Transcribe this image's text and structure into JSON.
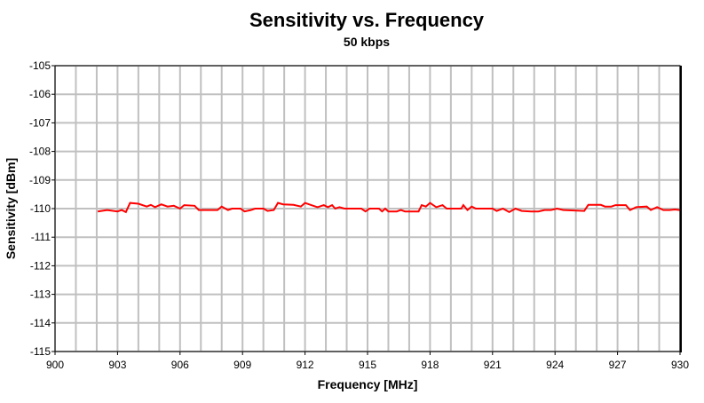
{
  "chart_data": {
    "type": "line",
    "title": "Sensitivity vs. Frequency",
    "subtitle": "50 kbps",
    "xlabel": "Frequency [MHz]",
    "ylabel": "Sensitivity [dBm]",
    "xlim": [
      900,
      930
    ],
    "ylim": [
      -115,
      -105
    ],
    "xticks": [
      900,
      903,
      906,
      909,
      912,
      915,
      918,
      921,
      924,
      927,
      930
    ],
    "yticks": [
      -105,
      -106,
      -107,
      -108,
      -109,
      -110,
      -111,
      -112,
      -113,
      -114,
      -115
    ],
    "grid": true,
    "colors": {
      "series": "#ff0000",
      "grid": "#c0c0c0"
    },
    "series": [
      {
        "x": [
          902.05,
          902.5,
          903.0,
          903.2,
          903.4,
          903.6,
          904.0,
          904.4,
          904.6,
          904.8,
          905.1,
          905.4,
          905.7,
          906.0,
          906.2,
          906.7,
          906.9,
          907.8,
          908.0,
          908.3,
          908.5,
          908.9,
          909.1,
          909.4,
          909.6,
          910.0,
          910.2,
          910.5,
          910.7,
          910.95,
          911.45,
          911.8,
          912.0,
          912.3,
          912.6,
          912.9,
          913.1,
          913.3,
          913.45,
          913.65,
          913.9,
          914.7,
          914.9,
          915.1,
          915.55,
          915.7,
          915.85,
          916.0,
          916.4,
          916.6,
          916.8,
          917.45,
          917.6,
          917.8,
          918.0,
          918.3,
          918.6,
          918.8,
          919.5,
          919.6,
          919.8,
          920.0,
          920.2,
          921.0,
          921.2,
          921.5,
          921.8,
          922.1,
          922.4,
          922.85,
          923.2,
          923.5,
          923.8,
          924.1,
          924.4,
          925.4,
          925.6,
          926.2,
          926.4,
          926.7,
          926.9,
          927.4,
          927.6,
          927.9,
          928.4,
          928.6,
          928.9,
          929.2,
          929.5,
          929.75,
          930.0
        ],
        "y": [
          -110.1,
          -110.05,
          -110.1,
          -110.05,
          -110.12,
          -109.8,
          -109.83,
          -109.93,
          -109.87,
          -109.95,
          -109.85,
          -109.93,
          -109.9,
          -110.0,
          -109.88,
          -109.9,
          -110.05,
          -110.05,
          -109.93,
          -110.05,
          -110.0,
          -110.0,
          -110.1,
          -110.05,
          -110.0,
          -110.0,
          -110.08,
          -110.05,
          -109.8,
          -109.85,
          -109.87,
          -109.93,
          -109.8,
          -109.88,
          -109.95,
          -109.88,
          -109.95,
          -109.88,
          -110.0,
          -109.95,
          -110.0,
          -110.0,
          -110.1,
          -110.0,
          -110.0,
          -110.1,
          -110.0,
          -110.1,
          -110.1,
          -110.05,
          -110.1,
          -110.1,
          -109.88,
          -109.93,
          -109.8,
          -109.95,
          -109.88,
          -110.0,
          -110.0,
          -109.88,
          -110.05,
          -109.93,
          -110.0,
          -110.0,
          -110.08,
          -110.0,
          -110.12,
          -110.0,
          -110.08,
          -110.1,
          -110.1,
          -110.05,
          -110.05,
          -110.0,
          -110.05,
          -110.08,
          -109.87,
          -109.87,
          -109.93,
          -109.93,
          -109.88,
          -109.88,
          -110.05,
          -109.95,
          -109.93,
          -110.05,
          -109.95,
          -110.05,
          -110.05,
          -110.03,
          -110.05
        ]
      }
    ]
  }
}
